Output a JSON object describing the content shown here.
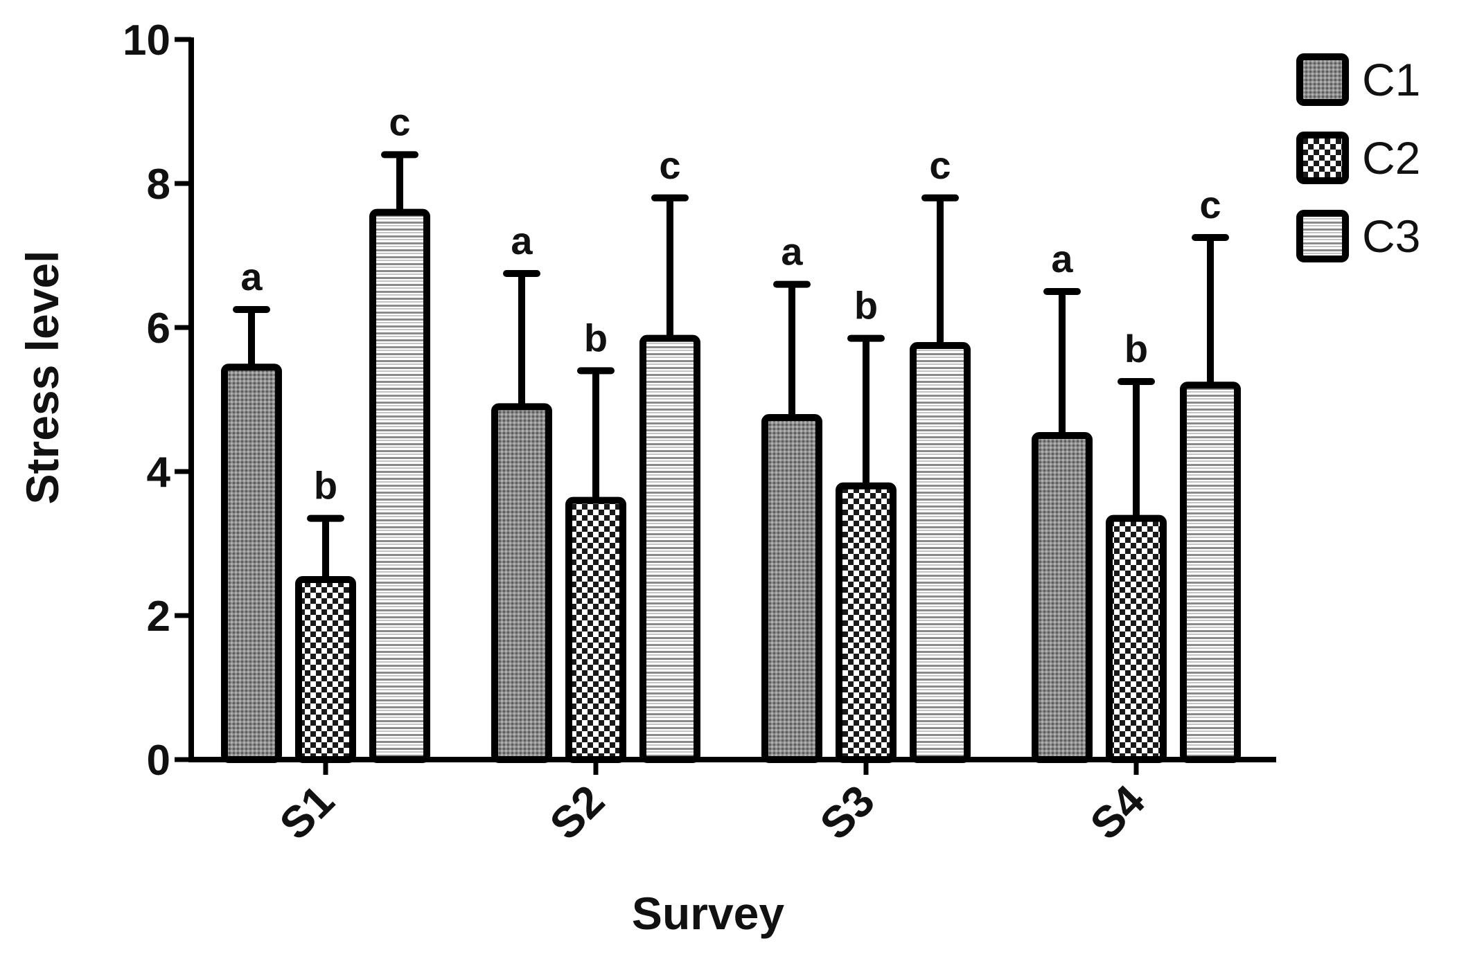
{
  "chart_data": {
    "type": "bar",
    "xlabel": "Survey",
    "ylabel": "Stress level",
    "ylim": [
      0,
      10
    ],
    "yticks": [
      0,
      2,
      4,
      6,
      8,
      10
    ],
    "categories": [
      "S1",
      "S2",
      "S3",
      "S4"
    ],
    "legend_position": "top-right",
    "series": [
      {
        "name": "C1",
        "pattern": "dense-dots",
        "values": [
          5.45,
          4.9,
          4.75,
          4.5
        ],
        "error": [
          0.8,
          1.85,
          1.85,
          2.0
        ],
        "sig": [
          "a",
          "a",
          "a",
          "a"
        ]
      },
      {
        "name": "C2",
        "pattern": "checker",
        "values": [
          2.5,
          3.6,
          3.8,
          3.35
        ],
        "error": [
          0.85,
          1.8,
          2.05,
          1.9
        ],
        "sig": [
          "b",
          "b",
          "b",
          "b"
        ]
      },
      {
        "name": "C3",
        "pattern": "horizontal-lines",
        "values": [
          7.6,
          5.85,
          5.75,
          5.2
        ],
        "error": [
          0.8,
          1.95,
          2.05,
          2.05
        ],
        "sig": [
          "c",
          "c",
          "c",
          "c"
        ]
      }
    ],
    "colors": {
      "stroke": "#000000",
      "fill_light": "#ffffff",
      "c1_fill": "#8c8c8c"
    }
  }
}
